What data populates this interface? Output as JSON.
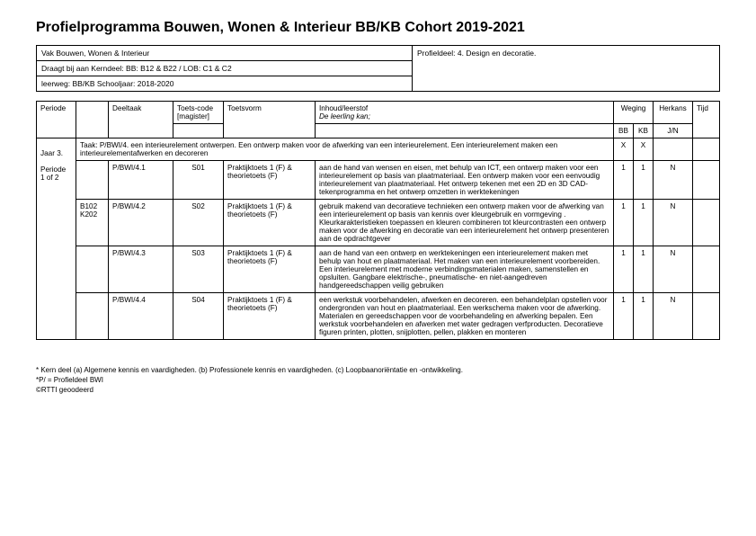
{
  "title": "Profielprogramma Bouwen, Wonen & Interieur BB/KB Cohort 2019-2021",
  "meta": {
    "vak": "Vak Bouwen, Wonen & Interieur",
    "profieldeel": "Profieldeel: 4. Design en decoratie.",
    "kerndeel": "Draagt bij aan Kerndeel: BB: B12 & B22 / LOB: C1 & C2",
    "leerweg": "leerweg: BB/KB Schooljaar: 2018-2020"
  },
  "headers": {
    "periode": "Periode",
    "deeltaak": "Deeltaak",
    "toetscode": "Toets-code",
    "toetscode_sub": "[magister]",
    "toetsvorm": "Toetsvorm",
    "inhoud": "Inhoud/leerstof",
    "inhoud_sub": "De leerling kan;",
    "weging": "Weging",
    "bb": "BB",
    "kb": "KB",
    "herkans": "Herkans",
    "jn": "J/N",
    "tijd": "Tijd"
  },
  "taak_row": {
    "text": "Taak: P/BWI/4. een interieurelement ontwerpen. Een ontwerp maken voor de afwerking van een interieurelement. Een interieurelement maken een interieurelementafwerken en decoreren",
    "bb": "X",
    "kb": "X"
  },
  "periode_col": {
    "jaar": "Jaar 3.",
    "periode": "Periode 1 of 2"
  },
  "rows": [
    {
      "code": "",
      "deeltaak": "P/BWI/4.1",
      "toetscode": "S01",
      "toetsvorm": "Praktijktoets 1 (F) & theorietoets (F)",
      "inhoud": "aan de hand van wensen en eisen, met behulp van ICT, een ontwerp maken voor een interieurelement op basis van plaatmateriaal. Een ontwerp maken voor een eenvoudig interieurelement van plaatmateriaal. Het ontwerp tekenen met een 2D en 3D CAD-tekenprogramma en het ontwerp omzetten in werktekeningen",
      "bb": "1",
      "kb": "1",
      "herkans": "N"
    },
    {
      "code": "B102 K202",
      "deeltaak": "P/BWI/4.2",
      "toetscode": "S02",
      "toetsvorm": "Praktijktoets 1 (F) & theorietoets (F)",
      "inhoud": "gebruik makend van decoratieve technieken een ontwerp maken voor de afwerking van een interieurelement op basis van kennis over kleurgebruik en vormgeving . Kleurkarakteristieken toepassen en kleuren combineren tot kleurcontrasten een ontwerp maken voor de afwerking en decoratie van een interieurelement het ontwerp presenteren aan de opdrachtgever",
      "bb": "1",
      "kb": "1",
      "herkans": "N"
    },
    {
      "code": "",
      "deeltaak": "P/BWI/4.3",
      "toetscode": "S03",
      "toetsvorm": "Praktijktoets 1 (F) & theorietoets (F)",
      "inhoud": "aan de hand van een ontwerp en werktekeningen een interieurelement maken met behulp van hout en plaatmateriaal. Het maken van een interieurelement voorbereiden. Een interieurelement met moderne verbindingsmaterialen maken, samenstellen en opsluiten. Gangbare elektrische-, pneumatische- en niet-aangedreven handgereedschappen veilig gebruiken",
      "bb": "1",
      "kb": "1",
      "herkans": "N"
    },
    {
      "code": "",
      "deeltaak": "P/BWI/4.4",
      "toetscode": "S04",
      "toetsvorm": "Praktijktoets 1 (F) & theorietoets (F)",
      "inhoud": "een werkstuk voorbehandelen, afwerken en decoreren. een behandelplan opstellen voor ondergronden van hout en plaatmateriaal. Een werkschema maken voor de afwerking. Materialen en gereedschappen voor de voorbehandeling en afwerking bepalen. Een werkstuk voorbehandelen en afwerken met water gedragen verfproducten. Decoratieve figuren printen, plotten, snijplotten, pellen, plakken en monteren",
      "bb": "1",
      "kb": "1",
      "herkans": "N"
    }
  ],
  "footnotes": {
    "f1": "* Kern deel (a) Algemene kennis en vaardigheden. (b) Professionele kennis en vaardigheden. (c) Loopbaanoriëntatie en -ontwikkeling.",
    "f2": "*P/ = Profieldeel BWI",
    "f3": "©RTTI geoodeerd"
  }
}
